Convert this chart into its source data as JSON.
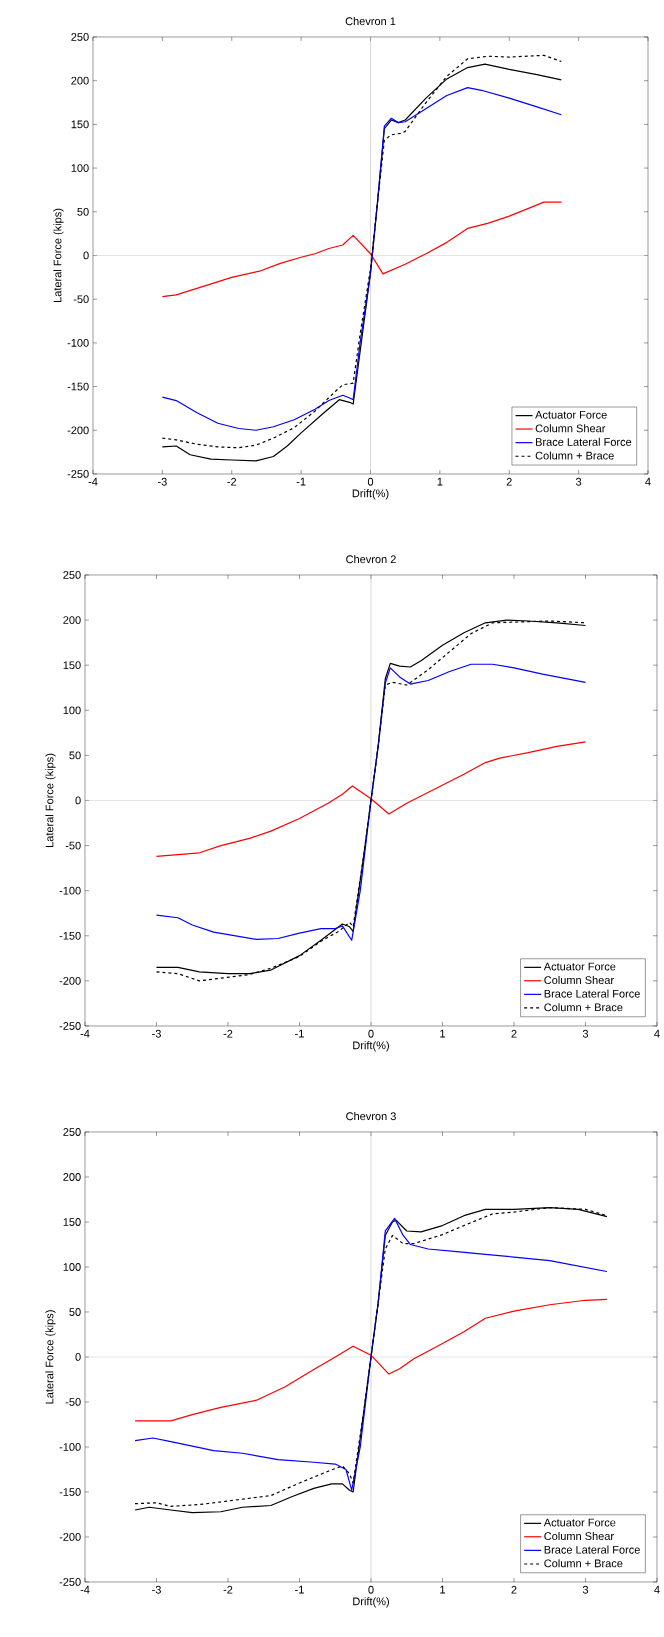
{
  "chart_data": [
    {
      "type": "line",
      "title": "Chevron 1",
      "xlabel": "Drift(%)",
      "ylabel": "Lateral Force (kips)",
      "xlim": [
        -4,
        4
      ],
      "ylim": [
        -250,
        250
      ],
      "xticks": [
        -4,
        -3,
        -2,
        -1,
        0,
        1,
        2,
        3,
        4
      ],
      "yticks": [
        -250,
        -200,
        -150,
        -100,
        -50,
        0,
        50,
        100,
        150,
        200,
        250
      ],
      "legend": "bottom right",
      "marker": "none",
      "ref_lines": [
        {
          "axis": "x",
          "value": 0,
          "color": "#a0a0a0"
        },
        {
          "axis": "y",
          "value": 0,
          "color": "#b8b8b8"
        }
      ],
      "series": [
        {
          "name": "Actuator Force",
          "color": "#000000",
          "line_style": "solid",
          "x": [
            -3,
            -2.8,
            -2.6,
            -2.3,
            -2,
            -1.65,
            -1.4,
            -1.2,
            -1,
            -0.7,
            -0.45,
            -0.3,
            -0.25,
            -0.15,
            0,
            0.1,
            0.2,
            0.3,
            0.4,
            0.5,
            0.8,
            1.1,
            1.4,
            1.65,
            2,
            2.4,
            2.75
          ],
          "values": [
            -219,
            -218,
            -228,
            -233,
            -234,
            -235,
            -230,
            -218,
            -203,
            -182,
            -165,
            -168,
            -170,
            -110,
            -20,
            60,
            145,
            155,
            152,
            155,
            180,
            202,
            215,
            219,
            213,
            207,
            201
          ]
        },
        {
          "name": "Column Shear",
          "color": "#ff0000",
          "line_style": "solid",
          "x": [
            -3,
            -2.8,
            -2.4,
            -2,
            -1.6,
            -1.3,
            -1,
            -0.8,
            -0.6,
            -0.4,
            -0.25,
            0,
            0.18,
            0.5,
            0.8,
            1.1,
            1.4,
            1.7,
            2,
            2.5,
            2.75
          ],
          "values": [
            -47,
            -45,
            -35,
            -25,
            -18,
            -9,
            -2,
            2,
            8,
            12,
            23,
            2,
            -21,
            -10,
            2,
            15,
            31,
            37,
            45,
            61,
            61
          ]
        },
        {
          "name": "Brace Lateral Force",
          "color": "#0000ff",
          "line_style": "solid",
          "x": [
            -3,
            -2.8,
            -2.5,
            -2.2,
            -1.9,
            -1.65,
            -1.4,
            -1.1,
            -0.8,
            -0.6,
            -0.4,
            -0.3,
            -0.25,
            -0.15,
            0,
            0.1,
            0.2,
            0.3,
            0.4,
            0.5,
            0.8,
            1.1,
            1.4,
            1.6,
            2,
            2.4,
            2.75
          ],
          "values": [
            -162,
            -166,
            -180,
            -192,
            -198,
            -200,
            -196,
            -188,
            -176,
            -166,
            -160,
            -163,
            -165,
            -100,
            -20,
            60,
            148,
            157,
            152,
            153,
            168,
            183,
            192,
            189,
            180,
            170,
            161
          ]
        },
        {
          "name": "Column + Brace",
          "color": "#000000",
          "line_style": "dashed",
          "x": [
            -3,
            -2.8,
            -2.5,
            -2.2,
            -1.9,
            -1.65,
            -1.4,
            -1.1,
            -0.8,
            -0.5,
            -0.4,
            -0.25,
            -0.15,
            0,
            0.1,
            0.2,
            0.3,
            0.45,
            0.5,
            0.8,
            1.1,
            1.4,
            1.7,
            2,
            2.5,
            2.75
          ],
          "values": [
            -209,
            -211,
            -216,
            -219,
            -220,
            -217,
            -209,
            -197,
            -178,
            -155,
            -148,
            -146,
            -90,
            -15,
            60,
            132,
            138,
            140,
            142,
            175,
            205,
            225,
            228,
            227,
            229,
            222
          ]
        }
      ]
    },
    {
      "type": "line",
      "title": "Chevron 2",
      "xlabel": "Drift(%)",
      "ylabel": "Lateral Force (kips)",
      "xlim": [
        -4,
        4
      ],
      "ylim": [
        -250,
        250
      ],
      "xticks": [
        -4,
        -3,
        -2,
        -1,
        0,
        1,
        2,
        3,
        4
      ],
      "yticks": [
        -250,
        -200,
        -150,
        -100,
        -50,
        0,
        50,
        100,
        150,
        200,
        250
      ],
      "legend": "bottom right",
      "marker": "none",
      "ref_lines": [
        {
          "axis": "x",
          "value": 0,
          "color": "#a0a0a0"
        },
        {
          "axis": "y",
          "value": 0,
          "color": "#b8b8b8"
        }
      ],
      "series": [
        {
          "name": "Actuator Force",
          "color": "#000000",
          "line_style": "solid",
          "x": [
            -3,
            -2.7,
            -2.4,
            -2,
            -1.7,
            -1.4,
            -1,
            -0.7,
            -0.4,
            -0.3,
            -0.25,
            -0.1,
            0,
            0.1,
            0.2,
            0.27,
            0.4,
            0.55,
            0.7,
            1,
            1.3,
            1.6,
            1.9,
            2.2,
            2.6,
            3
          ],
          "values": [
            -185,
            -185,
            -190,
            -192,
            -192,
            -188,
            -172,
            -155,
            -137,
            -140,
            -145,
            -60,
            0,
            60,
            135,
            152,
            149,
            148,
            155,
            172,
            186,
            197,
            200,
            199,
            197,
            194
          ]
        },
        {
          "name": "Column Shear",
          "color": "#ff0000",
          "line_style": "solid",
          "x": [
            -3,
            -2.7,
            -2.4,
            -2.1,
            -1.7,
            -1.4,
            -1,
            -0.6,
            -0.4,
            -0.26,
            0,
            0.25,
            0.5,
            0.7,
            1,
            1.3,
            1.6,
            1.8,
            2.2,
            2.6,
            3
          ],
          "values": [
            -62,
            -60,
            -58,
            -50,
            -42,
            -34,
            -20,
            -3,
            7,
            16,
            2,
            -15,
            -3,
            5,
            17,
            29,
            42,
            47,
            53,
            60,
            65
          ]
        },
        {
          "name": "Brace Lateral Force",
          "color": "#0000ff",
          "line_style": "solid",
          "x": [
            -3,
            -2.7,
            -2.5,
            -2.2,
            -1.9,
            -1.6,
            -1.3,
            -1,
            -0.7,
            -0.5,
            -0.4,
            -0.27,
            -0.15,
            0,
            0.1,
            0.2,
            0.27,
            0.4,
            0.55,
            0.8,
            1.1,
            1.4,
            1.7,
            2,
            2.4,
            3
          ],
          "values": [
            -127,
            -130,
            -138,
            -146,
            -150,
            -154,
            -153,
            -147,
            -142,
            -142,
            -139,
            -155,
            -100,
            0,
            60,
            130,
            147,
            137,
            129,
            133,
            143,
            151,
            151,
            147,
            140,
            131
          ]
        },
        {
          "name": "Column + Brace",
          "color": "#000000",
          "line_style": "dashed",
          "x": [
            -3,
            -2.7,
            -2.4,
            -2.1,
            -1.7,
            -1.4,
            -1,
            -0.7,
            -0.45,
            -0.3,
            -0.25,
            -0.1,
            0,
            0.1,
            0.2,
            0.3,
            0.5,
            0.8,
            1.1,
            1.4,
            1.7,
            2.1,
            2.5,
            3
          ],
          "values": [
            -190,
            -192,
            -200,
            -197,
            -193,
            -186,
            -173,
            -156,
            -145,
            -135,
            -140,
            -60,
            0,
            60,
            128,
            131,
            128,
            145,
            165,
            185,
            197,
            198,
            199,
            197
          ]
        }
      ]
    },
    {
      "type": "line",
      "title": "Chevron 3",
      "xlabel": "Drift(%)",
      "ylabel": "Lateral Force (kips)",
      "xlim": [
        -4,
        4
      ],
      "ylim": [
        -250,
        250
      ],
      "xticks": [
        -4,
        -3,
        -2,
        -1,
        0,
        1,
        2,
        3,
        4
      ],
      "yticks": [
        -250,
        -200,
        -150,
        -100,
        -50,
        0,
        50,
        100,
        150,
        200,
        250
      ],
      "legend": "bottom right",
      "marker": "none",
      "ref_lines": [
        {
          "axis": "x",
          "value": 0,
          "color": "#a0a0a0"
        },
        {
          "axis": "y",
          "value": 0,
          "color": "#b8b8b8"
        }
      ],
      "series": [
        {
          "name": "Actuator Force",
          "color": "#000000",
          "line_style": "solid",
          "x": [
            -3.3,
            -3.1,
            -2.8,
            -2.5,
            -2.1,
            -1.8,
            -1.4,
            -1.1,
            -0.8,
            -0.55,
            -0.4,
            -0.3,
            -0.25,
            -0.1,
            0,
            0.1,
            0.2,
            0.3,
            0.35,
            0.5,
            0.7,
            1,
            1.3,
            1.6,
            2,
            2.5,
            2.9,
            3.3
          ],
          "values": [
            -170,
            -167,
            -170,
            -173,
            -172,
            -167,
            -165,
            -155,
            -146,
            -141,
            -141,
            -148,
            -150,
            -60,
            0,
            60,
            135,
            150,
            152,
            140,
            139,
            146,
            157,
            164,
            164,
            166,
            164,
            156
          ]
        },
        {
          "name": "Column Shear",
          "color": "#ff0000",
          "line_style": "solid",
          "x": [
            -3.3,
            -2.8,
            -2.5,
            -2.1,
            -1.6,
            -1.2,
            -0.8,
            -0.5,
            -0.25,
            0,
            0.25,
            0.4,
            0.6,
            1,
            1.3,
            1.6,
            2,
            2.5,
            3,
            3.3
          ],
          "values": [
            -71,
            -71,
            -64,
            -56,
            -48,
            -33,
            -14,
            0,
            12,
            2,
            -19,
            -13,
            -2,
            15,
            28,
            43,
            51,
            58,
            63,
            64
          ]
        },
        {
          "name": "Brace Lateral Force",
          "color": "#0000ff",
          "line_style": "solid",
          "x": [
            -3.3,
            -3.05,
            -2.8,
            -2.2,
            -1.8,
            -1.3,
            -0.8,
            -0.5,
            -0.35,
            -0.27,
            -0.15,
            0,
            0.1,
            0.2,
            0.33,
            0.45,
            0.55,
            0.8,
            1.2,
            1.6,
            2,
            2.5,
            3.3
          ],
          "values": [
            -93,
            -90,
            -94,
            -104,
            -107,
            -114,
            -117,
            -119,
            -125,
            -148,
            -100,
            0,
            60,
            140,
            154,
            135,
            125,
            120,
            117,
            114,
            111,
            107,
            95
          ]
        },
        {
          "name": "Column + Brace",
          "color": "#000000",
          "line_style": "dashed",
          "x": [
            -3.3,
            -3,
            -2.8,
            -2.4,
            -2,
            -1.4,
            -1,
            -0.6,
            -0.4,
            -0.3,
            -0.25,
            -0.1,
            0,
            0.1,
            0.2,
            0.3,
            0.45,
            0.6,
            1,
            1.3,
            1.7,
            2,
            2.5,
            3,
            3.3
          ],
          "values": [
            -163,
            -162,
            -166,
            -164,
            -160,
            -154,
            -140,
            -127,
            -121,
            -130,
            -140,
            -60,
            0,
            60,
            120,
            135,
            126,
            126,
            136,
            146,
            159,
            161,
            166,
            164,
            157
          ]
        }
      ]
    }
  ]
}
